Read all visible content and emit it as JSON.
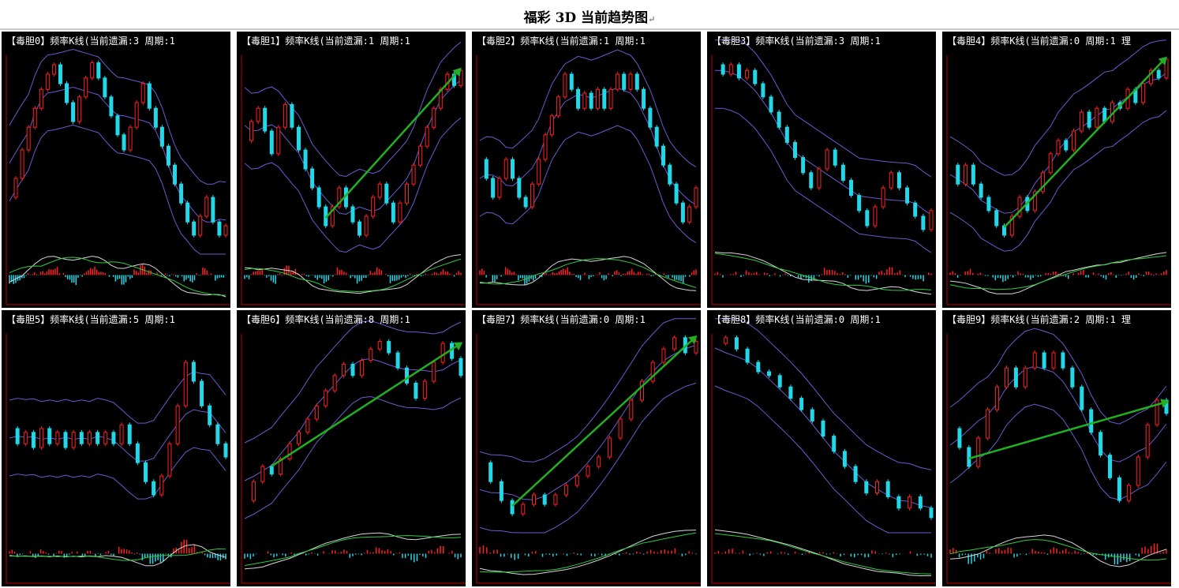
{
  "title": "福彩 3D 当前趋势图",
  "title_mark": "↵",
  "colors": {
    "background": "#000000",
    "up": "#ff2020",
    "down": "#22d8e8",
    "band": "#6a5acd",
    "axis": "#c00000",
    "arrow": "#22b022",
    "line_white": "#d8d8d8",
    "line_green": "#2ecc40"
  },
  "chart_data": [
    {
      "type": "candlestick",
      "label": "【毒胆0】频率K线(当前遗漏:3 周期:1",
      "trend_arrow": false,
      "values": [
        0.25,
        0.35,
        0.5,
        0.62,
        0.72,
        0.82,
        0.9,
        0.95,
        0.85,
        0.75,
        0.65,
        0.78,
        0.88,
        0.96,
        0.88,
        0.78,
        0.68,
        0.58,
        0.5,
        0.62,
        0.75,
        0.85,
        0.72,
        0.62,
        0.52,
        0.42,
        0.32,
        0.22,
        0.12,
        0.05,
        0.15,
        0.25,
        0.12,
        0.05,
        0.1
      ]
    },
    {
      "type": "candlestick",
      "label": "【毒胆1】频率K线(当前遗漏:1 周期:1",
      "trend_arrow": true,
      "values": [
        0.55,
        0.65,
        0.72,
        0.6,
        0.48,
        0.62,
        0.74,
        0.62,
        0.5,
        0.4,
        0.3,
        0.2,
        0.1,
        0.2,
        0.3,
        0.2,
        0.12,
        0.05,
        0.15,
        0.25,
        0.32,
        0.22,
        0.12,
        0.22,
        0.32,
        0.42,
        0.52,
        0.62,
        0.72,
        0.82,
        0.9,
        0.84,
        0.92
      ]
    },
    {
      "type": "candlestick",
      "label": "【毒胆2】频率K线(当前遗漏:1 周期:1",
      "trend_arrow": false,
      "values": [
        0.45,
        0.35,
        0.25,
        0.35,
        0.45,
        0.35,
        0.25,
        0.2,
        0.32,
        0.45,
        0.58,
        0.68,
        0.78,
        0.9,
        0.82,
        0.72,
        0.8,
        0.72,
        0.82,
        0.72,
        0.82,
        0.9,
        0.82,
        0.9,
        0.82,
        0.72,
        0.62,
        0.52,
        0.42,
        0.32,
        0.22,
        0.12,
        0.2,
        0.3
      ]
    },
    {
      "type": "candlestick",
      "label": "【毒胆3】频率K线(当前遗漏:3 周期:1",
      "trend_arrow": false,
      "values": [
        0.95,
        0.9,
        0.95,
        0.88,
        0.92,
        0.85,
        0.78,
        0.7,
        0.62,
        0.54,
        0.46,
        0.38,
        0.3,
        0.4,
        0.5,
        0.42,
        0.34,
        0.26,
        0.18,
        0.1,
        0.2,
        0.3,
        0.38,
        0.3,
        0.22,
        0.15,
        0.08,
        0.18
      ]
    },
    {
      "type": "candlestick",
      "label": "【毒胆4】频率K线(当前遗漏:0 周期:1 理",
      "trend_arrow": true,
      "values": [
        0.42,
        0.32,
        0.42,
        0.32,
        0.25,
        0.18,
        0.1,
        0.05,
        0.15,
        0.25,
        0.18,
        0.28,
        0.38,
        0.48,
        0.55,
        0.5,
        0.6,
        0.7,
        0.62,
        0.72,
        0.65,
        0.75,
        0.72,
        0.82,
        0.75,
        0.85,
        0.92,
        0.88,
        0.98
      ]
    },
    {
      "type": "candlestick",
      "label": "【毒胆5】频率K线(当前遗漏:5 周期:1",
      "trend_arrow": false,
      "values": [
        0.5,
        0.42,
        0.48,
        0.4,
        0.5,
        0.42,
        0.48,
        0.4,
        0.48,
        0.42,
        0.48,
        0.42,
        0.48,
        0.42,
        0.52,
        0.42,
        0.32,
        0.22,
        0.15,
        0.25,
        0.42,
        0.62,
        0.85,
        0.75,
        0.62,
        0.52,
        0.42,
        0.35
      ]
    },
    {
      "type": "candlestick",
      "label": "【毒胆6】频率K线(当前遗漏:8 周期:1",
      "trend_arrow": true,
      "values": [
        0.12,
        0.22,
        0.3,
        0.26,
        0.34,
        0.42,
        0.48,
        0.55,
        0.62,
        0.7,
        0.78,
        0.84,
        0.78,
        0.86,
        0.92,
        0.96,
        0.9,
        0.82,
        0.74,
        0.66,
        0.75,
        0.85,
        0.95,
        0.87,
        0.78
      ]
    },
    {
      "type": "candlestick",
      "label": "【毒胆7】频率K线(当前遗漏:0 周期:1",
      "trend_arrow": true,
      "values": [
        0.32,
        0.22,
        0.12,
        0.05,
        0.1,
        0.15,
        0.1,
        0.15,
        0.2,
        0.25,
        0.3,
        0.35,
        0.45,
        0.55,
        0.65,
        0.75,
        0.85,
        0.92,
        0.98,
        0.9,
        0.96
      ]
    },
    {
      "type": "candlestick",
      "label": "【毒胆8】频率K线(当前遗漏:0 周期:1",
      "trend_arrow": false,
      "values": [
        0.95,
        0.98,
        0.92,
        0.85,
        0.8,
        0.78,
        0.72,
        0.66,
        0.6,
        0.54,
        0.46,
        0.38,
        0.3,
        0.22,
        0.16,
        0.22,
        0.14,
        0.08,
        0.14,
        0.08,
        0.03
      ]
    },
    {
      "type": "candlestick",
      "label": "【毒胆9】频率K线(当前遗漏:2 周期:1 理",
      "trend_arrow": true,
      "values": [
        0.5,
        0.4,
        0.3,
        0.45,
        0.6,
        0.72,
        0.82,
        0.72,
        0.82,
        0.9,
        0.82,
        0.9,
        0.82,
        0.72,
        0.6,
        0.48,
        0.36,
        0.24,
        0.12,
        0.2,
        0.35,
        0.52,
        0.65,
        0.58
      ]
    }
  ]
}
